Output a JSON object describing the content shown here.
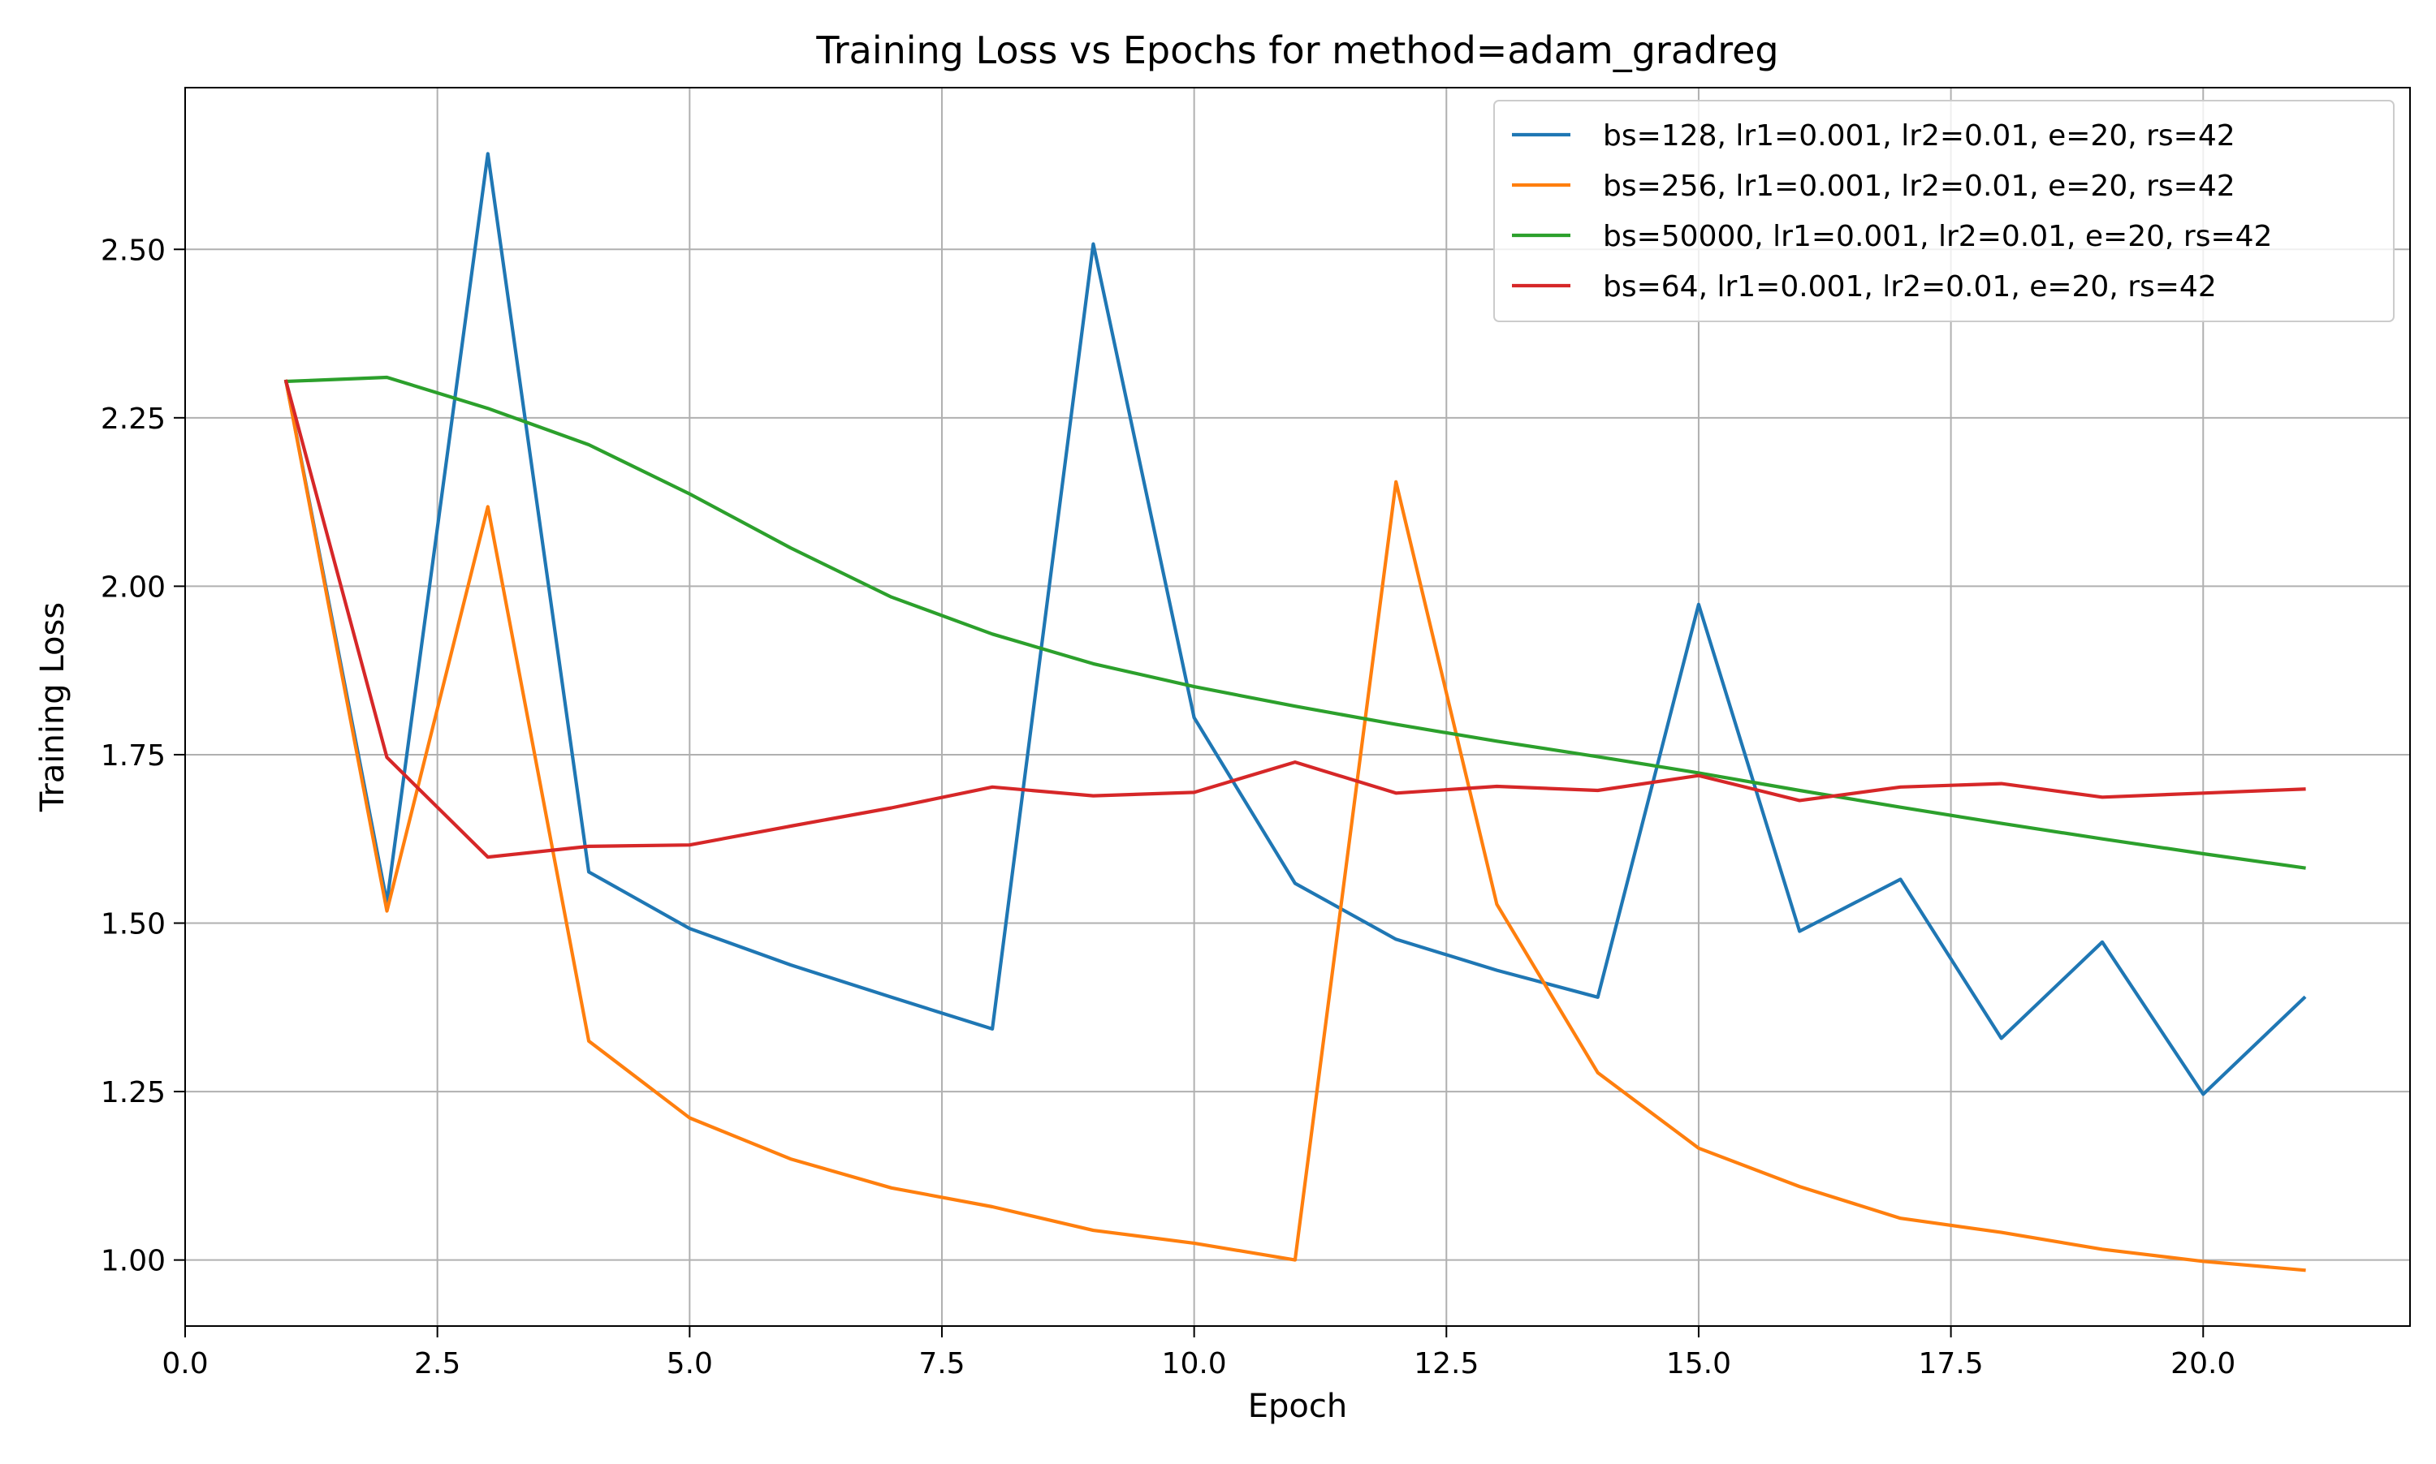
{
  "chart_data": {
    "type": "line",
    "title": "Training Loss vs Epochs for method=adam_gradreg",
    "xlabel": "Epoch",
    "ylabel": "Training Loss",
    "xlim": [
      0,
      22.05
    ],
    "ylim": [
      0.902,
      2.74
    ],
    "x_ticks": [
      0.0,
      2.5,
      5.0,
      7.5,
      10.0,
      12.5,
      15.0,
      17.5,
      20.0
    ],
    "x_tick_labels": [
      "0.0",
      "2.5",
      "5.0",
      "7.5",
      "10.0",
      "12.5",
      "15.0",
      "17.5",
      "20.0"
    ],
    "y_ticks": [
      1.0,
      1.25,
      1.5,
      1.75,
      2.0,
      2.25,
      2.5
    ],
    "y_tick_labels": [
      "1.00",
      "1.25",
      "1.50",
      "1.75",
      "2.00",
      "2.25",
      "2.50"
    ],
    "grid": true,
    "legend_position": "top-right",
    "x": [
      1,
      2,
      3,
      4,
      5,
      6,
      7,
      8,
      9,
      10,
      11,
      12,
      13,
      14,
      15,
      16,
      17,
      18,
      19,
      20,
      21
    ],
    "series": [
      {
        "name": "bs=128, lr1=0.001, lr2=0.01, e=20, rs=42",
        "color": "#1f77b4",
        "values": [
          2.304,
          1.531,
          2.642,
          1.576,
          1.492,
          1.438,
          1.39,
          1.343,
          2.508,
          1.805,
          1.559,
          1.476,
          1.43,
          1.39,
          1.973,
          1.488,
          1.565,
          1.329,
          1.472,
          1.246,
          1.389
        ]
      },
      {
        "name": "bs=256, lr1=0.001, lr2=0.01, e=20, rs=42",
        "color": "#ff7f0e",
        "values": [
          2.304,
          1.518,
          2.118,
          1.325,
          1.211,
          1.15,
          1.107,
          1.079,
          1.044,
          1.025,
          1.0,
          2.155,
          1.528,
          1.278,
          1.166,
          1.109,
          1.062,
          1.041,
          1.016,
          0.998,
          0.985
        ]
      },
      {
        "name": "bs=50000, lr1=0.001, lr2=0.01, e=20, rs=42",
        "color": "#2ca02c",
        "values": [
          2.304,
          2.31,
          2.264,
          2.21,
          2.137,
          2.057,
          1.984,
          1.929,
          1.885,
          1.851,
          1.822,
          1.795,
          1.77,
          1.747,
          1.723,
          1.697,
          1.672,
          1.648,
          1.625,
          1.603,
          1.582
        ]
      },
      {
        "name": "bs=64, lr1=0.001, lr2=0.01, e=20, rs=42",
        "color": "#d62728",
        "values": [
          2.304,
          1.746,
          1.598,
          1.614,
          1.616,
          1.644,
          1.671,
          1.702,
          1.689,
          1.694,
          1.739,
          1.693,
          1.703,
          1.697,
          1.719,
          1.682,
          1.702,
          1.707,
          1.687,
          1.693,
          1.699
        ]
      }
    ]
  }
}
